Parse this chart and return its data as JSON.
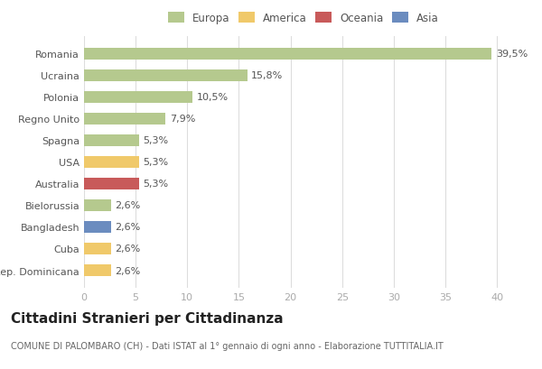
{
  "countries": [
    "Romania",
    "Ucraina",
    "Polonia",
    "Regno Unito",
    "Spagna",
    "USA",
    "Australia",
    "Bielorussia",
    "Bangladesh",
    "Cuba",
    "Rep. Dominicana"
  ],
  "values": [
    39.5,
    15.8,
    10.5,
    7.9,
    5.3,
    5.3,
    5.3,
    2.6,
    2.6,
    2.6,
    2.6
  ],
  "labels": [
    "39,5%",
    "15,8%",
    "10,5%",
    "7,9%",
    "5,3%",
    "5,3%",
    "5,3%",
    "2,6%",
    "2,6%",
    "2,6%",
    "2,6%"
  ],
  "bar_colors": [
    "#b5c98e",
    "#b5c98e",
    "#b5c98e",
    "#b5c98e",
    "#b5c98e",
    "#f0c96a",
    "#c85a5a",
    "#b5c98e",
    "#6b8cbf",
    "#f0c96a",
    "#f0c96a"
  ],
  "legend_labels": [
    "Europa",
    "America",
    "Oceania",
    "Asia"
  ],
  "legend_colors": [
    "#b5c98e",
    "#f0c96a",
    "#c85a5a",
    "#6b8cbf"
  ],
  "title": "Cittadini Stranieri per Cittadinanza",
  "subtitle": "COMUNE DI PALOMBARO (CH) - Dati ISTAT al 1° gennaio di ogni anno - Elaborazione TUTTITALIA.IT",
  "xlim": [
    0,
    42
  ],
  "xticks": [
    0,
    5,
    10,
    15,
    20,
    25,
    30,
    35,
    40
  ],
  "background_color": "#ffffff",
  "grid_color": "#dddddd",
  "bar_height": 0.55,
  "label_fontsize": 8,
  "tick_fontsize": 8,
  "title_fontsize": 11,
  "subtitle_fontsize": 7
}
